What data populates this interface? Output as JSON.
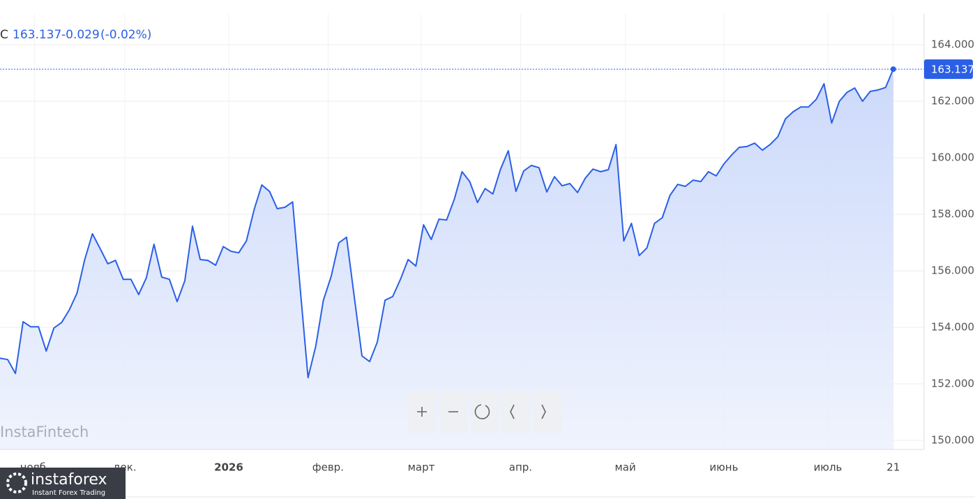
{
  "chart_data": {
    "type": "area",
    "ohlc_label": "C",
    "last_value": 163.137,
    "change": -0.029,
    "change_percent": "(-0.02%)",
    "watermark": "InstaFintech",
    "logo": {
      "name": "instaforex",
      "tagline": "Instant Forex Trading"
    },
    "grid": true,
    "series": [
      {
        "name": "C",
        "color": "#2a5fe6",
        "fill": "#dbe4fb",
        "values": [
          152.91,
          152.86,
          152.37,
          154.2,
          154.02,
          154.02,
          153.16,
          153.98,
          154.17,
          154.62,
          155.21,
          156.4,
          157.31,
          156.79,
          156.25,
          156.37,
          155.7,
          155.7,
          155.16,
          155.75,
          156.94,
          155.78,
          155.7,
          154.91,
          155.65,
          157.58,
          156.4,
          156.37,
          156.2,
          156.86,
          156.69,
          156.64,
          157.06,
          158.17,
          159.04,
          158.81,
          158.2,
          158.25,
          158.44,
          155.33,
          152.22,
          153.33,
          154.96,
          155.8,
          156.99,
          157.19,
          155.09,
          152.99,
          152.79,
          153.48,
          154.96,
          155.09,
          155.7,
          156.4,
          156.17,
          157.63,
          157.11,
          157.83,
          157.8,
          158.54,
          159.51,
          159.16,
          158.42,
          158.91,
          158.72,
          159.6,
          160.25,
          158.81,
          159.53,
          159.73,
          159.65,
          158.79,
          159.33,
          159.01,
          159.09,
          158.77,
          159.28,
          159.6,
          159.51,
          159.58,
          160.47,
          157.06,
          157.68,
          156.54,
          156.81,
          157.68,
          157.88,
          158.67,
          159.06,
          158.99,
          159.21,
          159.16,
          159.51,
          159.36,
          159.78,
          160.1,
          160.37,
          160.4,
          160.52,
          160.27,
          160.47,
          160.74,
          161.38,
          161.63,
          161.8,
          161.8,
          162.07,
          162.62,
          161.23,
          162.0,
          162.32,
          162.47,
          162.0,
          162.35,
          162.4,
          162.49,
          163.137
        ]
      }
    ],
    "xlim": [
      0,
      120
    ],
    "xticks": [
      {
        "value": 4.5,
        "label": "нояб."
      },
      {
        "value": 16.2,
        "label": "дек."
      },
      {
        "value": 29.7,
        "label": "2026",
        "bold": true
      },
      {
        "value": 42.6,
        "label": "февр."
      },
      {
        "value": 54.7,
        "label": "март"
      },
      {
        "value": 67.6,
        "label": "апр."
      },
      {
        "value": 81.2,
        "label": "май"
      },
      {
        "value": 94.0,
        "label": "июнь"
      },
      {
        "value": 107.5,
        "label": "июль"
      },
      {
        "value": 116.0,
        "label": "21"
      }
    ],
    "ylim": [
      149.68,
      165.09
    ],
    "yticks": [
      {
        "value": 150,
        "label": "150.000"
      },
      {
        "value": 152,
        "label": "152.000"
      },
      {
        "value": 154,
        "label": "154.000"
      },
      {
        "value": 156,
        "label": "156.000"
      },
      {
        "value": 158,
        "label": "158.000"
      },
      {
        "value": 160,
        "label": "160.000"
      },
      {
        "value": 162,
        "label": "162.000"
      },
      {
        "value": 164,
        "label": "164.000"
      }
    ]
  }
}
